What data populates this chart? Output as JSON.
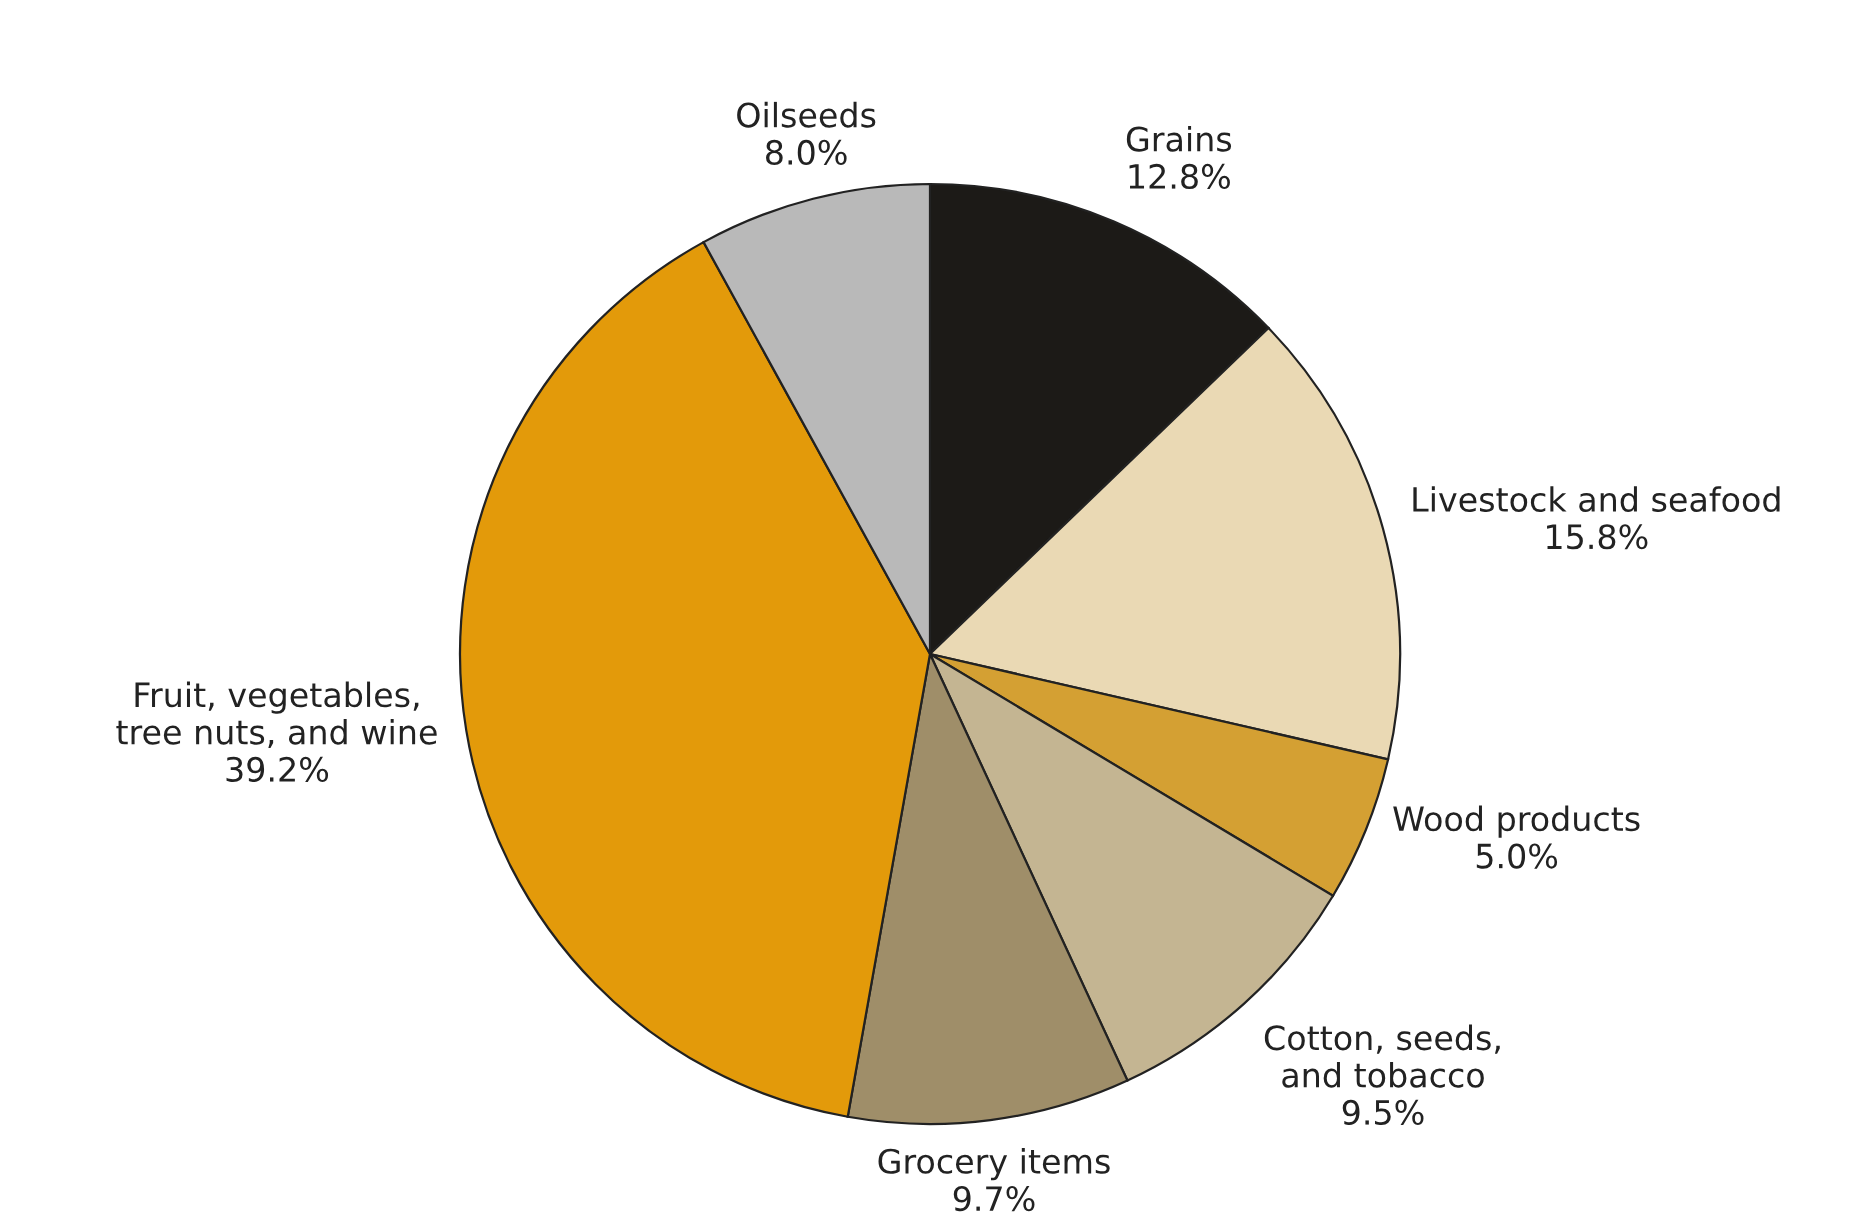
{
  "chart_data": {
    "type": "pie",
    "categories": [
      "Grains",
      "Livestock and seafood",
      "Wood products",
      "Cotton, seeds,\nand tobacco",
      "Grocery items",
      "Fruit, vegetables,\ntree nuts, and wine",
      "Oilseeds"
    ],
    "values": [
      12.8,
      15.8,
      5.0,
      9.5,
      9.7,
      39.2,
      8.0
    ],
    "value_labels": [
      "12.8%",
      "15.8%",
      "5.0%",
      "9.5%",
      "9.7%",
      "39.2%",
      "8.0%"
    ],
    "colors": [
      "#1c1a17",
      "#ead9b4",
      "#d4a033",
      "#c4b592",
      "#9f8e69",
      "#e39a0a",
      "#b9b9b9"
    ]
  }
}
